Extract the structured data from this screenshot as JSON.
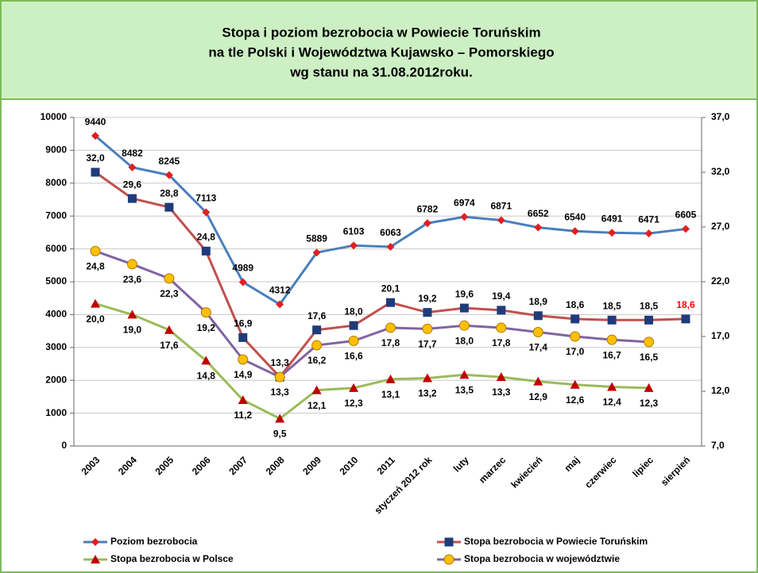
{
  "chart_data": {
    "type": "line",
    "title_lines": [
      "Stopa i poziom bezrobocia w Powiecie Toruńskim",
      "na tle Polski i Województwa Kujawsko – Pomorskiego",
      "wg stanu na 31.08.2012roku."
    ],
    "categories": [
      "2003",
      "2004",
      "2005",
      "2006",
      "2007",
      "2008",
      "2009",
      "2010",
      "2011",
      "styczeń 2012 rok",
      "luty",
      "marzec",
      "kwiecień",
      "maj",
      "czerwiec",
      "lipiec",
      "sierpień"
    ],
    "ylim": [
      0,
      10000
    ],
    "yticks": [
      0,
      1000,
      2000,
      3000,
      4000,
      5000,
      6000,
      7000,
      8000,
      9000,
      10000
    ],
    "y2lim": [
      7,
      37
    ],
    "y2ticks": [
      {
        "value": 7,
        "label": "7,0"
      },
      {
        "value": 12,
        "label": "12,0"
      },
      {
        "value": 17,
        "label": "17,0"
      },
      {
        "value": 22,
        "label": "22,0"
      },
      {
        "value": 27,
        "label": "27,0"
      },
      {
        "value": 32,
        "label": "32,0"
      },
      {
        "value": 37,
        "label": "37,0"
      }
    ],
    "grid": true,
    "legend": "bottom",
    "series": [
      {
        "name": "Poziom bezrobocia",
        "color": "#4a7ebb",
        "marker": "diamond",
        "marker_color": "#e02020",
        "label_position": "above",
        "values": [
          9440,
          8482,
          8245,
          7113,
          4989,
          4312,
          5889,
          6103,
          6063,
          6782,
          6974,
          6871,
          6652,
          6540,
          6491,
          6471,
          6605
        ]
      },
      {
        "name": "Stopa bezrobocia w Powiecie Toruńskim",
        "color": "#c0504d",
        "marker": "square",
        "marker_color": "#1f3b7a",
        "axis": "y2",
        "label_position": "above",
        "highlight": {
          "index": 16,
          "color": "#ff0000"
        },
        "values": [
          32.0,
          29.6,
          28.8,
          24.8,
          16.9,
          13.3,
          17.6,
          18.0,
          20.1,
          19.2,
          19.6,
          19.4,
          18.9,
          18.6,
          18.5,
          18.5,
          18.6
        ],
        "value_labels": [
          "32,0",
          "29,6",
          "28,8",
          "24,8",
          "16,9",
          "13,3",
          "17,6",
          "18,0",
          "20,1",
          "19,2",
          "19,6",
          "19,4",
          "18,9",
          "18,6",
          "18,5",
          "18,5",
          "18,6"
        ]
      },
      {
        "name": "Stopa bezrobocia w Polsce",
        "color": "#9bbb59",
        "marker": "triangle",
        "marker_color": "#c00000",
        "axis": "y2",
        "label_position": "below",
        "values": [
          20.0,
          19.0,
          17.6,
          14.8,
          11.2,
          9.5,
          12.1,
          12.3,
          13.1,
          13.2,
          13.5,
          13.3,
          12.9,
          12.6,
          12.4,
          12.3,
          null
        ],
        "value_labels": [
          "20,0",
          "19,0",
          "17,6",
          "14,8",
          "11,2",
          "9,5",
          "12,1",
          "12,3",
          "13,1",
          "13,2",
          "13,5",
          "13,3",
          "12,9",
          "12,6",
          "12,4",
          "12,3",
          null
        ]
      },
      {
        "name": "Stopa bezrobocia w województwie",
        "color": "#8064a2",
        "marker": "circle",
        "marker_color": "#ffc000",
        "axis": "y2",
        "label_position": "below",
        "values": [
          24.8,
          23.6,
          22.3,
          19.2,
          14.9,
          13.3,
          16.2,
          16.6,
          17.8,
          17.7,
          18.0,
          17.8,
          17.4,
          17.0,
          16.7,
          16.5,
          null
        ],
        "value_labels": [
          "24,8",
          "23,6",
          "22,3",
          "19,2",
          "14,9",
          "13,3",
          "16,2",
          "16,6",
          "17,8",
          "17,7",
          "18,0",
          "17,8",
          "17,4",
          "17,0",
          "16,7",
          "16,5",
          null
        ]
      }
    ]
  }
}
